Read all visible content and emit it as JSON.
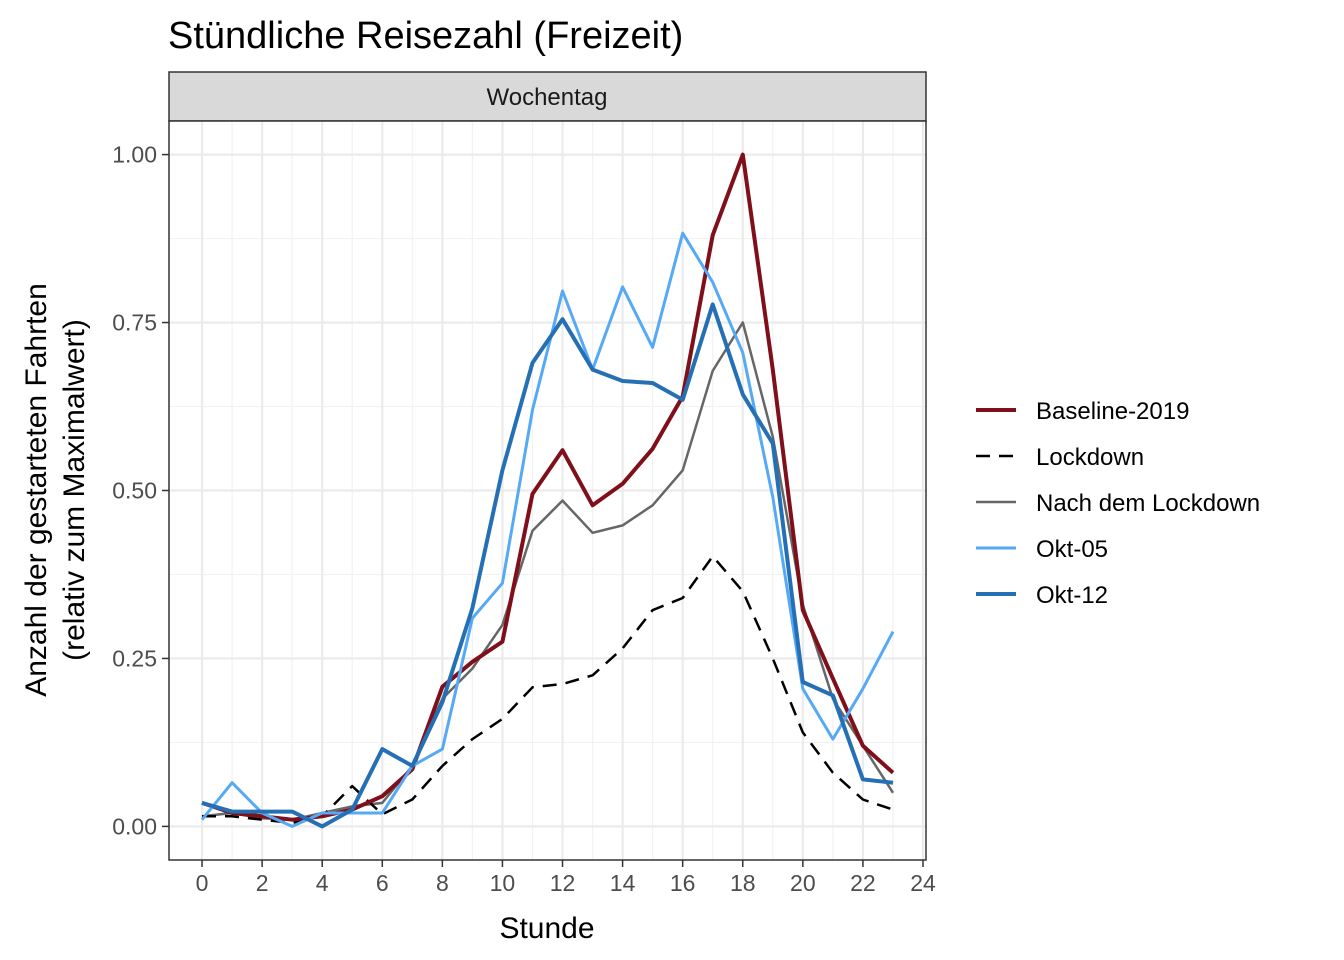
{
  "chart_data": {
    "type": "line",
    "title": "Stündliche Reisezahl (Freizeit)",
    "facet_label": "Wochentag",
    "xlabel": "Stunde",
    "ylabel": "Anzahl der gestarteten Fahrten",
    "ylabel2": "(relativ zum Maximalwert)",
    "xlim": [
      -1.1,
      24.1
    ],
    "ylim": [
      -0.05,
      1.05
    ],
    "xticks": [
      0,
      2,
      4,
      6,
      8,
      10,
      12,
      14,
      16,
      18,
      20,
      22,
      24
    ],
    "xtick_labels": [
      "0",
      "2",
      "4",
      "6",
      "8",
      "10",
      "12",
      "14",
      "16",
      "18",
      "20",
      "22",
      "24"
    ],
    "yticks": [
      0,
      0.25,
      0.5,
      0.75,
      1.0
    ],
    "ytick_labels": [
      "0.00",
      "0.25",
      "0.50",
      "0.75",
      "1.00"
    ],
    "grid": true,
    "legend_position": "right",
    "x": [
      0,
      1,
      2,
      3,
      4,
      5,
      6,
      7,
      8,
      9,
      10,
      11,
      12,
      13,
      14,
      15,
      16,
      17,
      18,
      19,
      20,
      21,
      22,
      23
    ],
    "series": [
      {
        "name": "Nach dem Lockdown",
        "color": "#666666",
        "width": 2.5,
        "dash": "",
        "values": [
          0.015,
          0.02,
          0.012,
          0.01,
          0.02,
          0.03,
          0.035,
          0.09,
          0.19,
          0.235,
          0.3,
          0.44,
          0.485,
          0.437,
          0.448,
          0.478,
          0.53,
          0.678,
          0.75,
          0.58,
          0.33,
          0.19,
          0.12,
          0.05
        ]
      },
      {
        "name": "Lockdown",
        "color": "#000000",
        "width": 2.5,
        "dash": "14,9",
        "values": [
          0.015,
          0.015,
          0.01,
          0.005,
          0.015,
          0.06,
          0.018,
          0.04,
          0.09,
          0.13,
          0.16,
          0.207,
          0.212,
          0.225,
          0.265,
          0.322,
          0.34,
          0.402,
          0.35,
          0.25,
          0.14,
          0.08,
          0.04,
          0.025
        ]
      },
      {
        "name": "Baseline-2019",
        "color": "#7f0f1a",
        "width": 4,
        "dash": "",
        "values": [
          0.035,
          0.02,
          0.015,
          0.01,
          0.015,
          0.025,
          0.045,
          0.085,
          0.208,
          0.245,
          0.275,
          0.495,
          0.56,
          0.478,
          0.51,
          0.562,
          0.64,
          0.88,
          1.0,
          0.68,
          0.322,
          0.22,
          0.12,
          0.08
        ]
      },
      {
        "name": "Okt-05",
        "color": "#56a9f5",
        "width": 3,
        "dash": "",
        "values": [
          0.01,
          0.065,
          0.02,
          0.0,
          0.02,
          0.02,
          0.02,
          0.09,
          0.115,
          0.31,
          0.362,
          0.62,
          0.797,
          0.68,
          0.803,
          0.713,
          0.883,
          0.81,
          0.705,
          0.49,
          0.205,
          0.13,
          0.205,
          0.29
        ]
      },
      {
        "name": "Okt-12",
        "color": "#2570b5",
        "width": 4,
        "dash": "",
        "values": [
          0.035,
          0.022,
          0.022,
          0.022,
          0.0,
          0.025,
          0.115,
          0.09,
          0.185,
          0.325,
          0.53,
          0.69,
          0.755,
          0.68,
          0.663,
          0.66,
          0.635,
          0.777,
          0.643,
          0.57,
          0.215,
          0.195,
          0.07,
          0.065
        ]
      }
    ],
    "legend": [
      {
        "name": "Baseline-2019",
        "color": "#7f0f1a",
        "width": 4,
        "dash": ""
      },
      {
        "name": "Lockdown",
        "color": "#000000",
        "width": 2.5,
        "dash": "14,9"
      },
      {
        "name": "Nach dem Lockdown",
        "color": "#666666",
        "width": 2.5,
        "dash": ""
      },
      {
        "name": "Okt-05",
        "color": "#56a9f5",
        "width": 3,
        "dash": ""
      },
      {
        "name": "Okt-12",
        "color": "#2570b5",
        "width": 4,
        "dash": ""
      }
    ]
  }
}
